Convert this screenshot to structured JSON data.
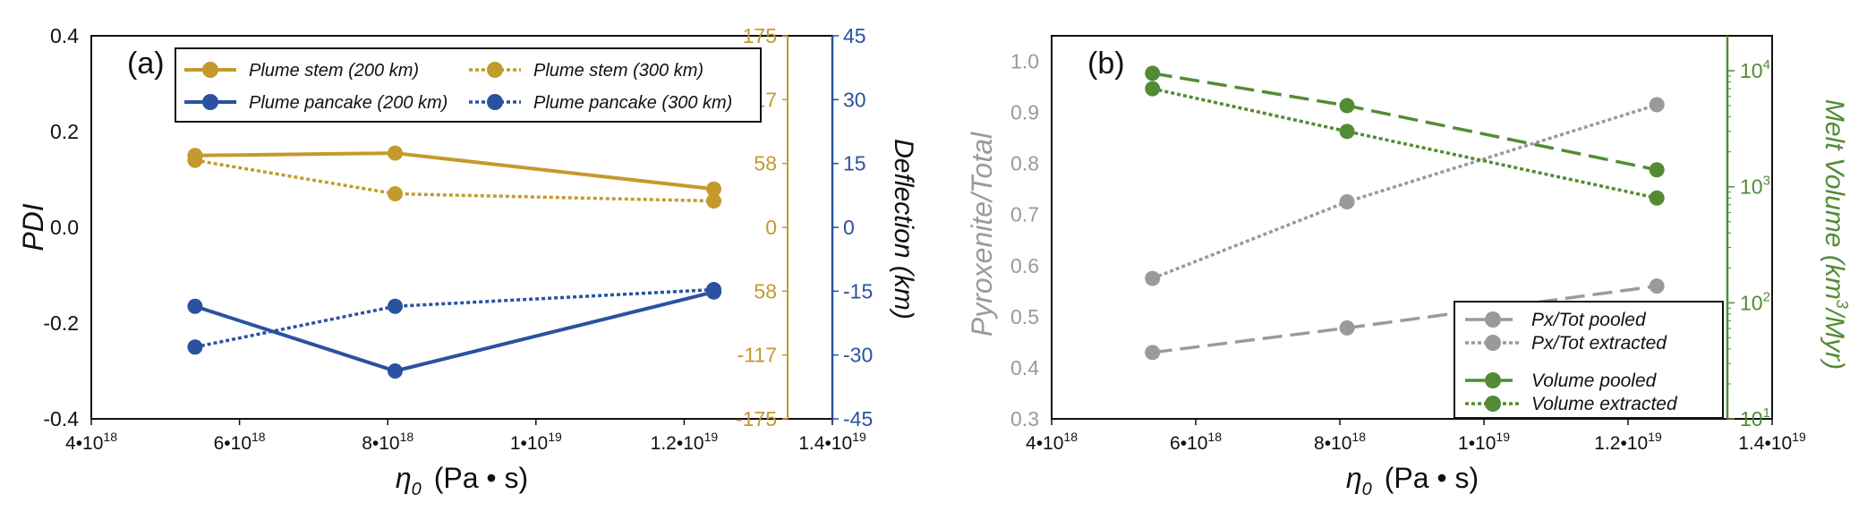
{
  "colors": {
    "gold": "#c49a2c",
    "blue": "#2a52a0",
    "gray": "#9a9a9a",
    "green": "#538b34",
    "dark": "#111111"
  },
  "xaxis": {
    "ticks": [
      {
        "v": 4e+18,
        "label": "4•10",
        "sup": "18"
      },
      {
        "v": 6e+18,
        "label": "6•10",
        "sup": "18"
      },
      {
        "v": 8e+18,
        "label": "8•10",
        "sup": "18"
      },
      {
        "v": 1e+19,
        "label": "1•10",
        "sup": "19"
      },
      {
        "v": 1.2e+19,
        "label": "1.2•10",
        "sup": "19"
      },
      {
        "v": 1.4e+19,
        "label": "1.4•10",
        "sup": "19"
      }
    ],
    "label_eta": "η",
    "label_sub": "0",
    "label_unit": "(Pa • s)"
  },
  "chart_data": [
    {
      "type": "line",
      "panel": "(a)",
      "xlim": [
        4e+18,
        1.4e+19
      ],
      "ylim": [
        -0.4,
        0.4
      ],
      "ylabel": "PDI",
      "yticks": [
        "0.4",
        "0.2",
        "0.0",
        "-0.2",
        "-0.4"
      ],
      "right_axis_1": {
        "ticks": [
          "175",
          "117",
          "58",
          "0",
          "58",
          "-117",
          "-175"
        ],
        "color": "gold"
      },
      "right_axis_2": {
        "ticks": [
          "45",
          "30",
          "15",
          "0",
          "-15",
          "-30",
          "-45"
        ],
        "label": "Deflection (km)",
        "color": "blue"
      },
      "legend_position": "top-left",
      "series": [
        {
          "name": "Plume stem (200 km)",
          "style": "solid",
          "color": "gold",
          "points": [
            [
              5.4e+18,
              0.15
            ],
            [
              8.1e+18,
              0.155
            ],
            [
              1.24e+19,
              0.08
            ]
          ]
        },
        {
          "name": "Plume stem (300 km)",
          "style": "dotted",
          "color": "gold",
          "points": [
            [
              5.4e+18,
              0.14
            ],
            [
              8.1e+18,
              0.07
            ],
            [
              1.24e+19,
              0.055
            ]
          ]
        },
        {
          "name": "Plume pancake (200 km)",
          "style": "solid",
          "color": "blue",
          "points": [
            [
              5.4e+18,
              -0.165
            ],
            [
              8.1e+18,
              -0.3
            ],
            [
              1.24e+19,
              -0.135
            ]
          ]
        },
        {
          "name": "Plume pancake (300 km)",
          "style": "dotted",
          "color": "blue",
          "points": [
            [
              5.4e+18,
              -0.25
            ],
            [
              8.1e+18,
              -0.165
            ],
            [
              1.24e+19,
              -0.13
            ]
          ]
        }
      ]
    },
    {
      "type": "line",
      "panel": "(b)",
      "xlim": [
        4e+18,
        1.4e+19
      ],
      "ylim": [
        0.3,
        1.05
      ],
      "ylabel": "Pyroxenite/Total",
      "yticks": [
        "1.0",
        "0.9",
        "0.8",
        "0.7",
        "0.6",
        "0.5",
        "0.4",
        "0.3"
      ],
      "y2label_main": "Melt Volume (km",
      "y2label_sup": "3",
      "y2label_tail": "/Myr)",
      "y2scale": "log",
      "y2lim": [
        10,
        20000
      ],
      "y2ticks": [
        {
          "v": 10,
          "base": "10",
          "sup": "1"
        },
        {
          "v": 100,
          "base": "10",
          "sup": "2"
        },
        {
          "v": 1000,
          "base": "10",
          "sup": "3"
        },
        {
          "v": 10000,
          "base": "10",
          "sup": "4"
        }
      ],
      "legend_position": "bottom-right",
      "series": [
        {
          "name": "Px/Tot pooled",
          "style": "dashed",
          "color": "gray",
          "axis": "left",
          "points": [
            [
              5.4e+18,
              0.43
            ],
            [
              8.1e+18,
              0.478
            ],
            [
              1.24e+19,
              0.56
            ]
          ]
        },
        {
          "name": "Px/Tot extracted",
          "style": "dotted",
          "color": "gray",
          "axis": "left",
          "points": [
            [
              5.4e+18,
              0.575
            ],
            [
              8.1e+18,
              0.725
            ],
            [
              1.24e+19,
              0.915
            ]
          ]
        },
        {
          "name": "Volume pooled",
          "style": "dashed",
          "color": "green",
          "axis": "right",
          "points": [
            [
              5.4e+18,
              9500
            ],
            [
              8.1e+18,
              5000
            ],
            [
              1.24e+19,
              1400
            ]
          ]
        },
        {
          "name": "Volume extracted",
          "style": "dotted",
          "color": "green",
          "axis": "right",
          "points": [
            [
              5.4e+18,
              7000
            ],
            [
              8.1e+18,
              3000
            ],
            [
              1.24e+19,
              800
            ]
          ]
        }
      ]
    }
  ]
}
